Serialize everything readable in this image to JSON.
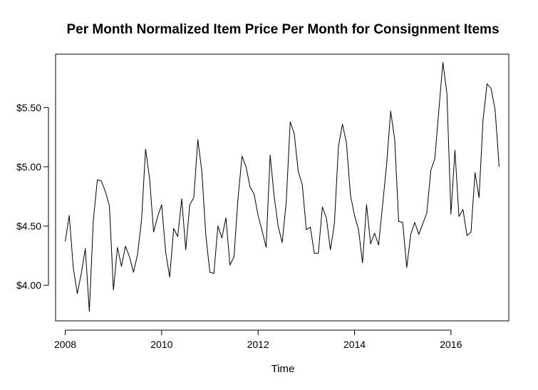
{
  "chart_data": {
    "type": "line",
    "title": "Per Month Normalized Item Price Per Month for Consignment Items",
    "xlabel": "Time",
    "ylabel": "",
    "xlim": [
      2007.8,
      2017.2
    ],
    "ylim": [
      3.7,
      5.95
    ],
    "x_ticks": [
      2008,
      2010,
      2012,
      2014,
      2016
    ],
    "x_tick_labels": [
      "2008",
      "2010",
      "2012",
      "2014",
      "2016"
    ],
    "y_ticks": [
      4.0,
      4.5,
      5.0,
      5.5
    ],
    "y_tick_labels": [
      "$4.00",
      "$4.50",
      "$5.00",
      "$5.50"
    ],
    "grid": false,
    "legend": "none",
    "line_color": "#000000",
    "x_start": 2008.0,
    "x_step": 0.083333,
    "series": [
      {
        "values": [
          4.37,
          4.59,
          4.15,
          3.93,
          4.1,
          4.31,
          3.78,
          4.55,
          4.89,
          4.88,
          4.79,
          4.67,
          3.96,
          4.32,
          4.16,
          4.33,
          4.24,
          4.11,
          4.26,
          4.55,
          5.15,
          4.9,
          4.45,
          4.58,
          4.68,
          4.28,
          4.07,
          4.48,
          4.41,
          4.73,
          4.3,
          4.68,
          4.74,
          5.23,
          4.96,
          4.42,
          4.11,
          4.1,
          4.5,
          4.4,
          4.57,
          4.17,
          4.24,
          4.73,
          5.09,
          5.0,
          4.83,
          4.77,
          4.59,
          4.46,
          4.32,
          5.1,
          4.75,
          4.5,
          4.36,
          4.7,
          5.38,
          5.28,
          4.96,
          4.85,
          4.47,
          4.49,
          4.27,
          4.27,
          4.66,
          4.57,
          4.3,
          4.52,
          5.17,
          5.36,
          5.2,
          4.76,
          4.59,
          4.47,
          4.19,
          4.68,
          4.35,
          4.44,
          4.34,
          4.68,
          5.02,
          5.47,
          5.23,
          4.54,
          4.53,
          4.15,
          4.43,
          4.53,
          4.43,
          4.52,
          4.61,
          4.97,
          5.07,
          5.48,
          5.88,
          5.62,
          4.6,
          5.14,
          4.58,
          4.64,
          4.42,
          4.45,
          4.95,
          4.74,
          5.4,
          5.7,
          5.66,
          5.48,
          5.0
        ]
      }
    ]
  }
}
